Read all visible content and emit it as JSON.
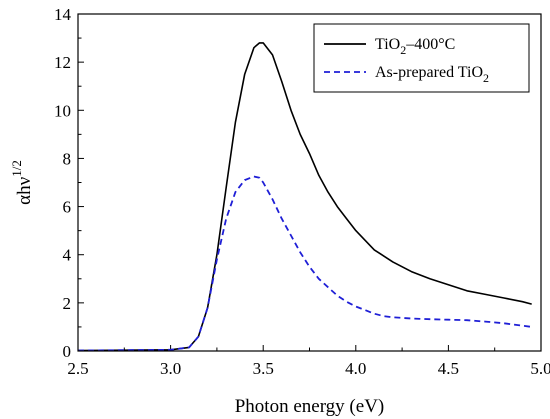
{
  "chart_data": {
    "type": "line",
    "xlabel": "Photon energy (eV)",
    "ylabel": {
      "main": "αhν",
      "sup": "1/2"
    },
    "xlim": [
      2.5,
      5.0
    ],
    "ylim": [
      0,
      14
    ],
    "xticks": [
      2.5,
      3.0,
      3.5,
      4.0,
      4.5,
      5.0
    ],
    "xtick_labels": [
      "2.5",
      "3.0",
      "3.5",
      "4.0",
      "4.5",
      "5.0"
    ],
    "yticks": [
      0,
      2,
      4,
      6,
      8,
      10,
      12,
      14
    ],
    "ytick_labels": [
      "0",
      "2",
      "4",
      "6",
      "8",
      "10",
      "12",
      "14"
    ],
    "grid": false,
    "legend_position": "top-right",
    "series": [
      {
        "name": "TiO2–400°C",
        "legend": {
          "main": "TiO",
          "sub": "2",
          "rest": "–400°C"
        },
        "color": "#000000",
        "dash": "solid",
        "x": [
          2.5,
          3.0,
          3.1,
          3.15,
          3.2,
          3.25,
          3.3,
          3.35,
          3.4,
          3.45,
          3.48,
          3.5,
          3.55,
          3.6,
          3.65,
          3.7,
          3.75,
          3.8,
          3.85,
          3.9,
          3.95,
          4.0,
          4.05,
          4.1,
          4.15,
          4.2,
          4.3,
          4.4,
          4.5,
          4.6,
          4.7,
          4.8,
          4.9,
          4.95
        ],
        "y": [
          0.02,
          0.05,
          0.15,
          0.6,
          1.8,
          4.0,
          6.8,
          9.5,
          11.5,
          12.6,
          12.8,
          12.8,
          12.3,
          11.2,
          10.0,
          9.0,
          8.2,
          7.3,
          6.6,
          6.0,
          5.5,
          5.0,
          4.6,
          4.2,
          3.95,
          3.7,
          3.3,
          3.0,
          2.75,
          2.5,
          2.35,
          2.2,
          2.05,
          1.95
        ]
      },
      {
        "name": "As-prepared TiO2",
        "legend": {
          "main": "As-prepared TiO",
          "sub": "2",
          "rest": ""
        },
        "color": "#1f1fd6",
        "dash": "dashed",
        "x": [
          2.5,
          3.0,
          3.1,
          3.15,
          3.2,
          3.25,
          3.3,
          3.35,
          3.4,
          3.45,
          3.48,
          3.5,
          3.55,
          3.6,
          3.65,
          3.7,
          3.75,
          3.8,
          3.85,
          3.9,
          3.95,
          4.0,
          4.05,
          4.1,
          4.15,
          4.2,
          4.3,
          4.4,
          4.5,
          4.6,
          4.7,
          4.8,
          4.9,
          4.95
        ],
        "y": [
          0.02,
          0.05,
          0.15,
          0.6,
          1.8,
          3.8,
          5.5,
          6.6,
          7.1,
          7.25,
          7.2,
          7.0,
          6.3,
          5.5,
          4.8,
          4.1,
          3.5,
          3.0,
          2.65,
          2.3,
          2.05,
          1.85,
          1.7,
          1.55,
          1.45,
          1.4,
          1.35,
          1.32,
          1.3,
          1.28,
          1.22,
          1.15,
          1.05,
          1.0
        ]
      }
    ]
  }
}
